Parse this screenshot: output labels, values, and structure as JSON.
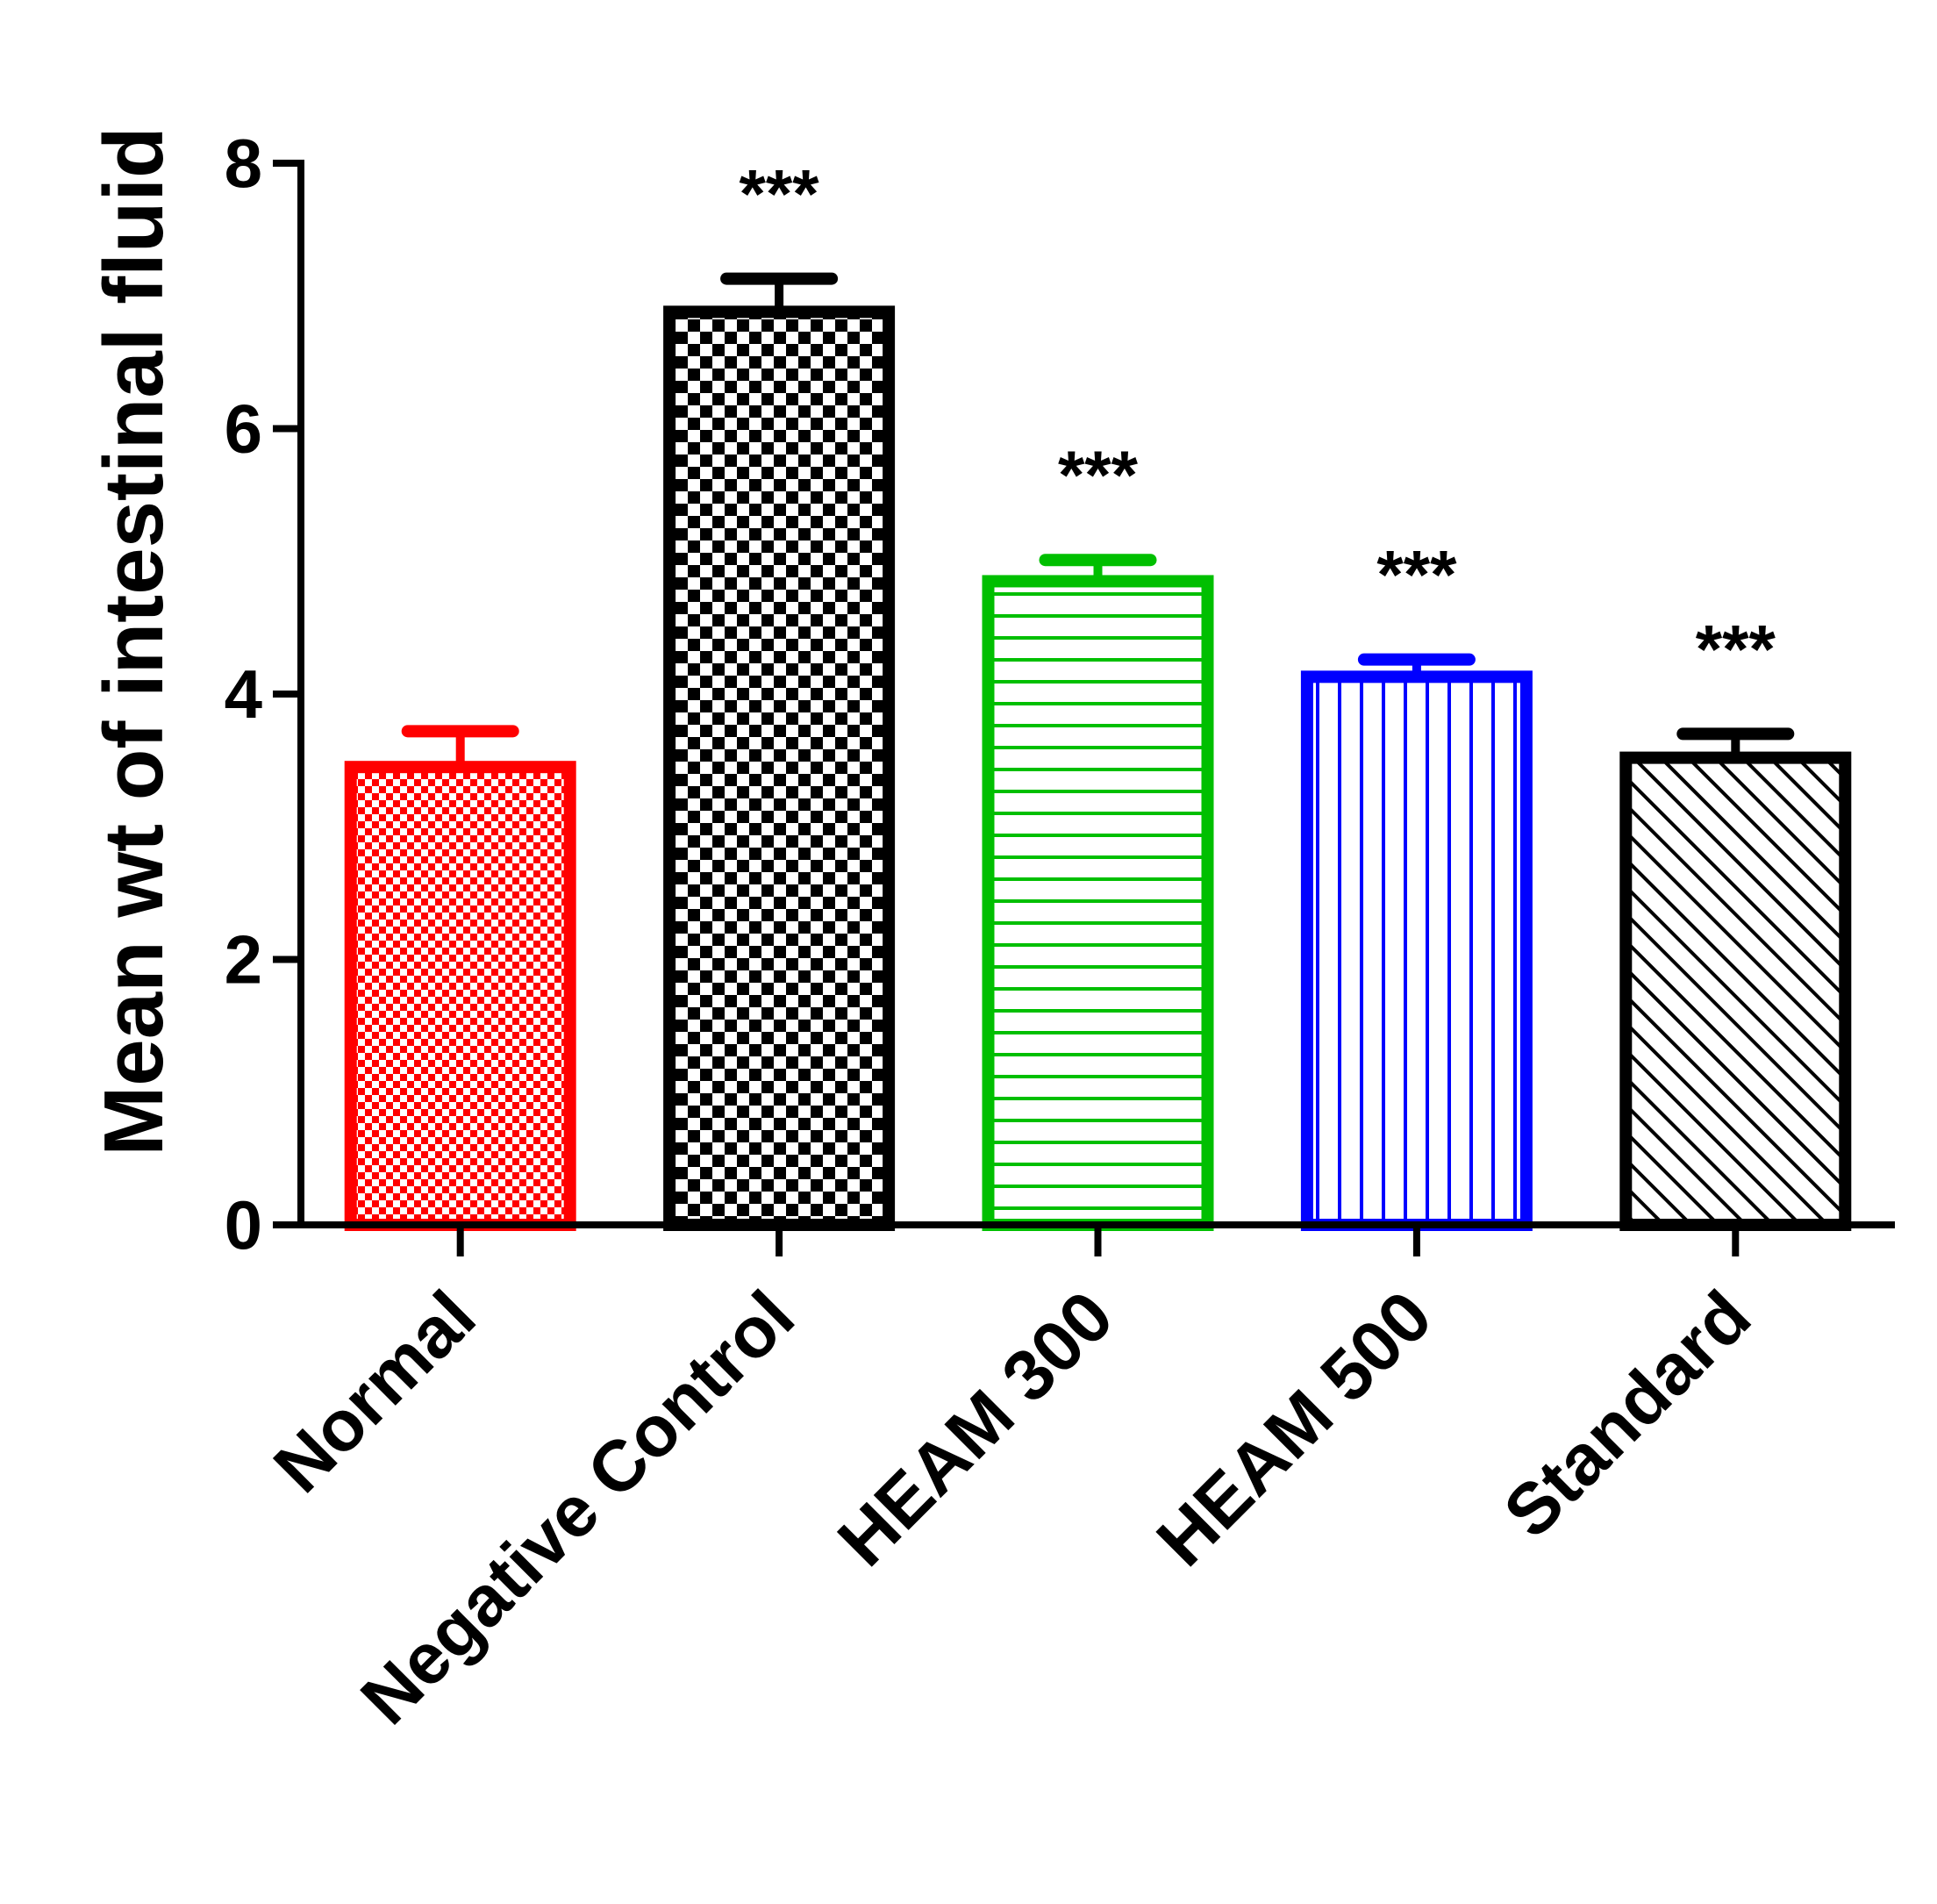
{
  "chart_data": {
    "type": "bar",
    "ylabel": "Mean wt of intestinal fluid",
    "xlabel": "",
    "ylim": [
      0,
      8
    ],
    "yticks": [
      0,
      2,
      4,
      6,
      8
    ],
    "categories": [
      "Normal",
      "Negative Control",
      "HEAM 300",
      "HEAM 500",
      "Standard"
    ],
    "values": [
      3.45,
      6.88,
      4.85,
      4.13,
      3.52
    ],
    "errors": [
      0.27,
      0.25,
      0.16,
      0.13,
      0.18
    ],
    "annotations": [
      "",
      "***",
      "***",
      "***",
      "***"
    ],
    "colors": [
      "#ff0000",
      "#000000",
      "#00bf00",
      "#0000ff",
      "#000000"
    ],
    "patterns": [
      "fine-checker",
      "checker",
      "horizontal-lines",
      "vertical-lines",
      "diagonal-lines"
    ],
    "grid": false
  }
}
